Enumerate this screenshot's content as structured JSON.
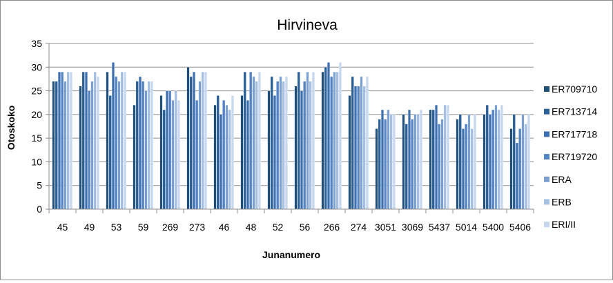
{
  "chart_data": {
    "type": "bar",
    "title": "Hirvineva",
    "xlabel": "Junanumero",
    "ylabel": "Otoskoko",
    "ylim": [
      0,
      35
    ],
    "yticks": [
      0,
      5,
      10,
      15,
      20,
      25,
      30,
      35
    ],
    "grid": true,
    "legend_position": "right",
    "categories": [
      "45",
      "49",
      "53",
      "59",
      "269",
      "273",
      "46",
      "48",
      "52",
      "56",
      "266",
      "274",
      "3051",
      "3069",
      "5437",
      "5014",
      "5400",
      "5406"
    ],
    "series": [
      {
        "name": "ER709710",
        "color": "#1f4e79",
        "values": [
          27,
          26,
          29,
          22,
          24,
          30,
          22,
          24,
          25,
          26,
          29,
          24,
          17,
          20,
          21,
          19,
          20,
          17
        ]
      },
      {
        "name": "ER713714",
        "color": "#2a5f98",
        "values": [
          27,
          29,
          24,
          27,
          21,
          28,
          24,
          29,
          28,
          29,
          30,
          28,
          19,
          18,
          21,
          20,
          22,
          20
        ]
      },
      {
        "name": "ER717718",
        "color": "#3b6fb0",
        "values": [
          29,
          29,
          31,
          28,
          25,
          29,
          20,
          23,
          24,
          25,
          31,
          26,
          21,
          21,
          22,
          17,
          20,
          14
        ]
      },
      {
        "name": "ER719720",
        "color": "#5484c4",
        "values": [
          29,
          25,
          28,
          27,
          25,
          23,
          23,
          29,
          27,
          27,
          28,
          26,
          19,
          19,
          18,
          18,
          21,
          17
        ]
      },
      {
        "name": "ERA",
        "color": "#7a9fd2",
        "values": [
          27,
          27,
          27,
          25,
          23,
          27,
          22,
          28,
          28,
          29,
          29,
          28,
          21,
          20,
          19,
          20,
          22,
          20
        ]
      },
      {
        "name": "ERB",
        "color": "#a5c0e3",
        "values": [
          29,
          29,
          29,
          27,
          25,
          29,
          21,
          27,
          27,
          27,
          29,
          26,
          20,
          20,
          22,
          17,
          21,
          18
        ]
      },
      {
        "name": "ERI/II",
        "color": "#c6d7ee",
        "values": [
          29,
          28,
          29,
          27,
          23,
          29,
          24,
          29,
          28,
          29,
          31,
          28,
          20,
          21,
          22,
          20,
          22,
          20
        ]
      }
    ]
  }
}
